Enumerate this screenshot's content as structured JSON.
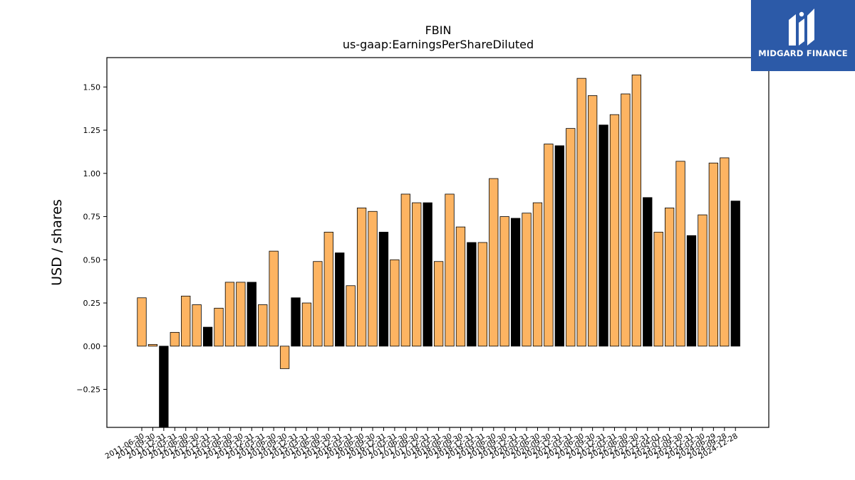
{
  "logo": {
    "text": "MIDGARD FINANCE"
  },
  "chart_data": {
    "type": "bar",
    "title": "FBIN",
    "subtitle": "us-gaap:EarningsPerShareDiluted",
    "xlabel": "",
    "ylabel": "USD / shares",
    "ylim": [
      -0.47,
      1.67
    ],
    "yticks": [
      -0.25,
      0.0,
      0.25,
      0.5,
      0.75,
      1.0,
      1.25,
      1.5
    ],
    "yticklabels": [
      "−0.25",
      "0.00",
      "0.25",
      "0.50",
      "0.75",
      "1.00",
      "1.25",
      "1.50"
    ],
    "grid": false,
    "colors": {
      "quarter": "#fdb462",
      "annual": "#000000",
      "edge": "#000000"
    },
    "categories": [
      "2011-06-30",
      "2011-09-30",
      "2011-12-31",
      "2012-03-31",
      "2012-06-30",
      "2012-09-30",
      "2012-12-31",
      "2013-03-31",
      "2013-06-30",
      "2013-09-30",
      "2013-12-31",
      "2014-03-31",
      "2014-06-30",
      "2014-09-30",
      "2014-12-31",
      "2015-03-31",
      "2015-06-30",
      "2015-09-30",
      "2015-12-31",
      "2016-03-31",
      "2016-06-30",
      "2016-09-30",
      "2016-12-31",
      "2017-03-31",
      "2017-06-30",
      "2017-09-30",
      "2017-12-31",
      "2018-03-31",
      "2018-06-30",
      "2018-09-30",
      "2018-12-31",
      "2019-03-31",
      "2019-06-30",
      "2019-09-30",
      "2019-12-31",
      "2020-03-31",
      "2020-06-30",
      "2020-09-30",
      "2020-12-31",
      "2021-03-31",
      "2021-06-30",
      "2021-09-30",
      "2021-12-31",
      "2022-03-31",
      "2022-06-30",
      "2022-09-30",
      "2022-12-31",
      "2023-04-01",
      "2023-07-01",
      "2023-09-30",
      "2023-12-31",
      "2024-03-30",
      "2024-06-29",
      "2024-09-28",
      "2024-12-28"
    ],
    "values": [
      0.28,
      0.01,
      -0.47,
      0.08,
      0.29,
      0.24,
      0.11,
      0.22,
      0.37,
      0.37,
      0.37,
      0.24,
      0.55,
      -0.13,
      0.28,
      0.25,
      0.49,
      0.66,
      0.54,
      0.35,
      0.8,
      0.78,
      0.66,
      0.5,
      0.88,
      0.83,
      0.83,
      0.49,
      0.88,
      0.69,
      0.6,
      0.6,
      0.97,
      0.75,
      0.74,
      0.77,
      0.83,
      1.17,
      1.16,
      1.26,
      1.55,
      1.45,
      1.28,
      1.34,
      1.46,
      1.57,
      0.86,
      0.66,
      0.8,
      1.07,
      0.64,
      0.76,
      1.06,
      1.09,
      0.84
    ],
    "annual": [
      false,
      false,
      true,
      false,
      false,
      false,
      true,
      false,
      false,
      false,
      true,
      false,
      false,
      false,
      true,
      false,
      false,
      false,
      true,
      false,
      false,
      false,
      true,
      false,
      false,
      false,
      true,
      false,
      false,
      false,
      true,
      false,
      false,
      false,
      true,
      false,
      false,
      false,
      true,
      false,
      false,
      false,
      true,
      false,
      false,
      false,
      true,
      false,
      false,
      false,
      true,
      false,
      false,
      false,
      true
    ]
  }
}
